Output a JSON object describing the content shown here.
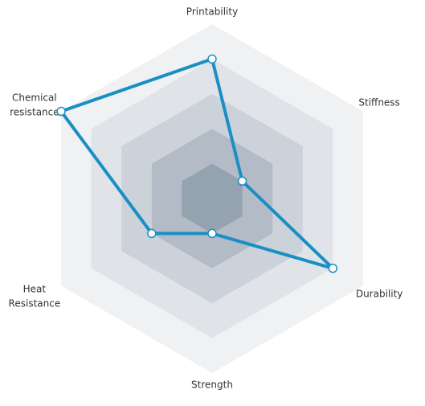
{
  "chart_data": {
    "type": "radar",
    "categories": [
      "Printability",
      "Stiffness",
      "Durability",
      "Strength",
      "Heat Resistance",
      "Chemical resistance"
    ],
    "values": [
      4,
      1,
      4,
      1,
      2,
      5
    ],
    "color": "#1a8fc4",
    "rlim": [
      0,
      5
    ],
    "rticks": [
      1,
      2,
      3,
      4,
      5
    ],
    "ring_colors": [
      "#95a2af",
      "#b3bcc6",
      "#ccd2d9",
      "#e0e4e8",
      "#f0f1f3"
    ]
  }
}
